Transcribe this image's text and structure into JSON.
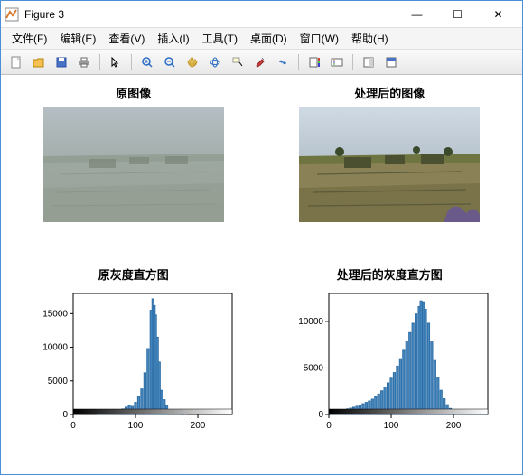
{
  "window": {
    "title": "Figure 3",
    "icon_color": "#d97b2e",
    "border_color": "#4a90d9"
  },
  "winbuttons": {
    "minimize": "—",
    "maximize": "☐",
    "close": "✕"
  },
  "menu": {
    "file": "文件(F)",
    "edit": "编辑(E)",
    "view": "查看(V)",
    "insert": "插入(I)",
    "tools": "工具(T)",
    "desktop": "桌面(D)",
    "window": "窗口(W)",
    "help": "帮助(H)"
  },
  "toolbar_icons": {
    "new": "new-file-icon",
    "open": "open-folder-icon",
    "save": "save-icon",
    "print": "print-icon",
    "pointer": "pointer-icon",
    "zoomin": "zoom-in-icon",
    "zoomout": "zoom-out-icon",
    "pan": "pan-icon",
    "rotate": "rotate-3d-icon",
    "datacursor": "data-cursor-icon",
    "brush": "brush-icon",
    "link": "link-icon",
    "colorbar": "colorbar-icon",
    "legend": "legend-icon",
    "hideplot": "hide-plot-icon",
    "dock": "dock-icon"
  },
  "panels": {
    "orig_image": {
      "title": "原图像"
    },
    "proc_image": {
      "title": "处理后的图像"
    },
    "orig_hist": {
      "title": "原灰度直方图"
    },
    "proc_hist": {
      "title": "处理后的灰度直方图"
    }
  },
  "image_style": {
    "orig": {
      "sky": "#a7b2b8",
      "ground": "#9aa49a",
      "mid": "#8f9a8e",
      "dark": "#6b7a6d"
    },
    "proc": {
      "sky": "#c8d4e0",
      "ground": "#8a8256",
      "mid": "#6f7540",
      "dark": "#3a4020",
      "highlight": "#e0e4ec"
    }
  },
  "hist_orig": {
    "type": "histogram",
    "xlim": [
      0,
      255
    ],
    "ylim": [
      0,
      18000
    ],
    "xticks": [
      0,
      100,
      200
    ],
    "yticks": [
      0,
      5000,
      10000,
      15000
    ],
    "bar_color": "#4a8cc2",
    "bar_edge": "#2f6fa7",
    "axis_color": "#000000",
    "bg": "#ffffff",
    "title_fontsize": 13,
    "tick_fontsize": 10,
    "gradient_bar": true,
    "bins": [
      [
        40,
        50
      ],
      [
        45,
        80
      ],
      [
        50,
        120
      ],
      [
        55,
        180
      ],
      [
        60,
        260
      ],
      [
        65,
        350
      ],
      [
        70,
        450
      ],
      [
        75,
        580
      ],
      [
        80,
        820
      ],
      [
        85,
        1100
      ],
      [
        90,
        1300
      ],
      [
        95,
        1200
      ],
      [
        100,
        1800
      ],
      [
        105,
        2700
      ],
      [
        110,
        3800
      ],
      [
        115,
        6200
      ],
      [
        120,
        9800
      ],
      [
        125,
        15500
      ],
      [
        128,
        17200
      ],
      [
        130,
        16200
      ],
      [
        132,
        14800
      ],
      [
        135,
        11500
      ],
      [
        138,
        7800
      ],
      [
        142,
        3600
      ],
      [
        146,
        2200
      ],
      [
        150,
        1300
      ],
      [
        155,
        700
      ],
      [
        160,
        400
      ],
      [
        165,
        200
      ],
      [
        170,
        100
      ],
      [
        180,
        40
      ]
    ]
  },
  "hist_proc": {
    "type": "histogram",
    "xlim": [
      0,
      255
    ],
    "ylim": [
      0,
      13000
    ],
    "xticks": [
      0,
      100,
      200
    ],
    "yticks": [
      0,
      5000,
      10000
    ],
    "bar_color": "#4a8cc2",
    "bar_edge": "#2f6fa7",
    "axis_color": "#000000",
    "bg": "#ffffff",
    "title_fontsize": 13,
    "tick_fontsize": 10,
    "gradient_bar": true,
    "bins": [
      [
        5,
        250
      ],
      [
        10,
        320
      ],
      [
        15,
        380
      ],
      [
        20,
        450
      ],
      [
        25,
        520
      ],
      [
        30,
        600
      ],
      [
        35,
        680
      ],
      [
        40,
        780
      ],
      [
        45,
        880
      ],
      [
        50,
        1000
      ],
      [
        55,
        1150
      ],
      [
        60,
        1300
      ],
      [
        65,
        1450
      ],
      [
        70,
        1650
      ],
      [
        75,
        1900
      ],
      [
        80,
        2200
      ],
      [
        85,
        2550
      ],
      [
        90,
        2950
      ],
      [
        95,
        3400
      ],
      [
        100,
        3900
      ],
      [
        105,
        4500
      ],
      [
        110,
        5200
      ],
      [
        115,
        6000
      ],
      [
        120,
        6900
      ],
      [
        125,
        7800
      ],
      [
        130,
        8800
      ],
      [
        135,
        9800
      ],
      [
        140,
        10800
      ],
      [
        145,
        11600
      ],
      [
        148,
        12200
      ],
      [
        152,
        12100
      ],
      [
        155,
        11300
      ],
      [
        160,
        9800
      ],
      [
        165,
        7800
      ],
      [
        170,
        5800
      ],
      [
        175,
        4000
      ],
      [
        180,
        2600
      ],
      [
        185,
        1700
      ],
      [
        190,
        1050
      ],
      [
        195,
        650
      ],
      [
        200,
        400
      ],
      [
        205,
        250
      ],
      [
        210,
        160
      ],
      [
        215,
        110
      ],
      [
        220,
        80
      ],
      [
        225,
        60
      ],
      [
        230,
        45
      ],
      [
        235,
        35
      ],
      [
        240,
        28
      ],
      [
        245,
        22
      ],
      [
        250,
        18
      ]
    ]
  }
}
